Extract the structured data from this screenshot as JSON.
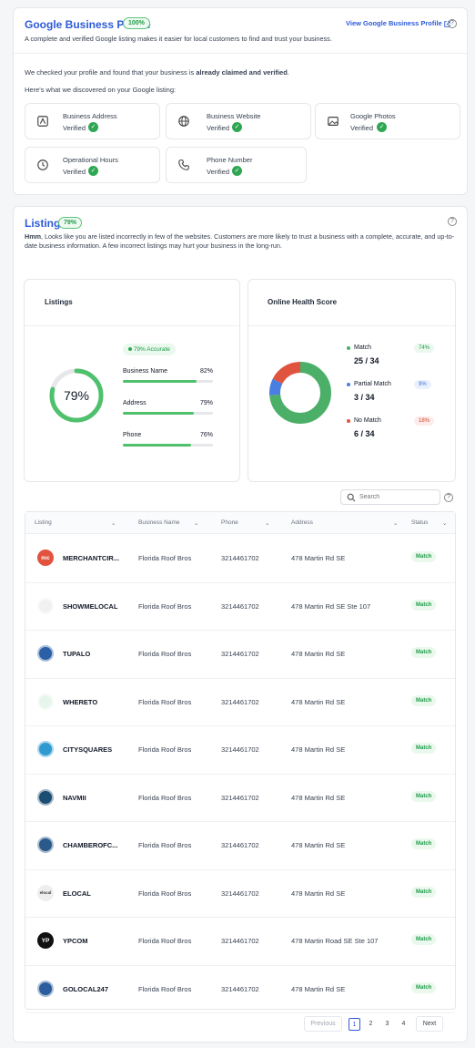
{
  "gbp": {
    "title": "Google Business Profile",
    "badge": "100%",
    "link": "View Google Business Profile",
    "subtitle": "A complete and verified Google listing makes it easier for local customers to find and trust your business.",
    "checked_pre": "We checked your profile and found that your business is ",
    "checked_bold": "already claimed and verified",
    "checked_post": ".",
    "discovered": "Here's what we discovered on your Google listing:",
    "items": [
      {
        "label": "Business Address",
        "status": "Verified",
        "icon": "map-icon"
      },
      {
        "label": "Business Website",
        "status": "Verified",
        "icon": "globe-icon"
      },
      {
        "label": "Google Photos",
        "status": "Verified",
        "icon": "image-icon"
      },
      {
        "label": "Operational Hours",
        "status": "Verified",
        "icon": "clock-icon"
      },
      {
        "label": "Phone Number",
        "status": "Verified",
        "icon": "phone-icon"
      }
    ]
  },
  "listings": {
    "title": "Listings",
    "badge": "79%",
    "desc_bold": "Hmm",
    "desc": ", Looks like you are listed incorrectly in few of the websites. Customers are more likely to trust a business with a complete, accurate, and up-to-date business information. A few incorrect listings may hurt your business in the long-run."
  },
  "listings_card": {
    "title": "Listings",
    "gauge": "79%",
    "accurate": "79% Accurate",
    "metrics": [
      {
        "label": "Business Name",
        "value": "82%",
        "fraction": 0.82
      },
      {
        "label": "Address",
        "value": "79%",
        "fraction": 0.79
      },
      {
        "label": "Phone",
        "value": "76%",
        "fraction": 0.76
      }
    ]
  },
  "health": {
    "title": "Online Health Score",
    "items": [
      {
        "label": "Match",
        "value": "25 / 34",
        "pct": "74%",
        "color": "#4caf68"
      },
      {
        "label": "Partial Match",
        "value": "3 / 34",
        "pct": "9%",
        "color": "#4a7ee0"
      },
      {
        "label": "No Match",
        "value": "6 / 34",
        "pct": "18%",
        "color": "#e0533f"
      }
    ]
  },
  "search": {
    "placeholder": "Search"
  },
  "table": {
    "headers": [
      "Listing",
      "Business Name",
      "Phone",
      "Address",
      "Status"
    ],
    "rows": [
      {
        "name": "MERCHANTCIR...",
        "logo": "mc",
        "color": "#e2533f",
        "business": "Florida Roof Bros",
        "phone": "3214461702",
        "address": "478 Martin Rd SE",
        "status": "Match"
      },
      {
        "name": "SHOWMELOCAL",
        "logo": "",
        "color": "#f1f1f1",
        "business": "Florida Roof Bros",
        "phone": "3214461702",
        "address": "478 Martin Rd SE Ste 107",
        "status": "Match"
      },
      {
        "name": "TUPALO",
        "logo": "",
        "color": "#2b5fa6",
        "business": "Florida Roof Bros",
        "phone": "3214461702",
        "address": "478 Martin Rd SE",
        "status": "Match"
      },
      {
        "name": "WHERETO",
        "logo": "",
        "color": "#e8f5ec",
        "business": "Florida Roof Bros",
        "phone": "3214461702",
        "address": "478 Martin Rd SE",
        "status": "Match"
      },
      {
        "name": "CITYSQUARES",
        "logo": "",
        "color": "#2e9ad0",
        "business": "Florida Roof Bros",
        "phone": "3214461702",
        "address": "478 Martin Rd SE",
        "status": "Match"
      },
      {
        "name": "NAVMII",
        "logo": "",
        "color": "#1c4d73",
        "business": "Florida Roof Bros",
        "phone": "3214461702",
        "address": "478 Martin Rd SE",
        "status": "Match"
      },
      {
        "name": "CHAMBEROFC...",
        "logo": "",
        "color": "#2a5a8a",
        "business": "Florida Roof Bros",
        "phone": "3214461702",
        "address": "478 Martin Rd SE",
        "status": "Match"
      },
      {
        "name": "ELOCAL",
        "logo": "elocal",
        "color": "#eeeeee",
        "business": "Florida Roof Bros",
        "phone": "3214461702",
        "address": "478 Martin Rd SE",
        "status": "Match"
      },
      {
        "name": "YPCOM",
        "logo": "YP",
        "color": "#111111",
        "business": "Florida Roof Bros",
        "phone": "3214461702",
        "address": "478 Martin Road SE Ste 107",
        "status": "Match"
      },
      {
        "name": "GOLOCAL247",
        "logo": "",
        "color": "#2c5c9c",
        "business": "Florida Roof Bros",
        "phone": "3214461702",
        "address": "478 Martin Rd SE",
        "status": "Match"
      }
    ]
  },
  "pagination": {
    "previous": "Previous",
    "pages": [
      "1",
      "2",
      "3",
      "4"
    ],
    "next": "Next"
  }
}
